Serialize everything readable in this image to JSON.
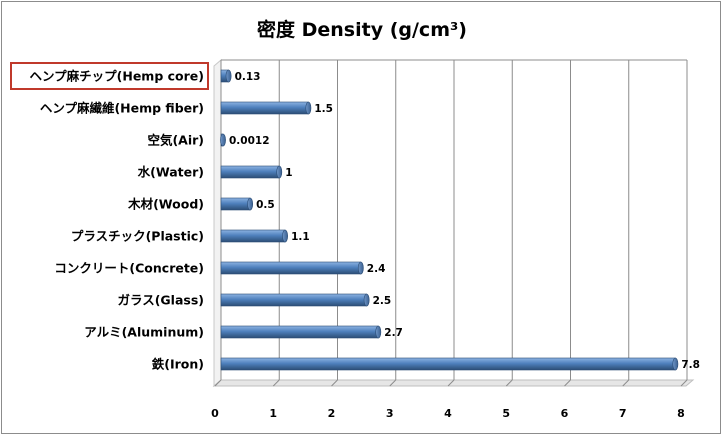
{
  "chart_data": {
    "type": "bar",
    "orientation": "horizontal",
    "title": "密度  Density (g/cm³)",
    "xlabel": "",
    "ylabel": "",
    "xlim": [
      0,
      8
    ],
    "x_ticks": [
      "0",
      "1",
      "2",
      "3",
      "4",
      "5",
      "6",
      "7",
      "8"
    ],
    "grid": "vertical",
    "legend": "none",
    "bar_color": "#4f81bd",
    "highlight_color": "#c0392b",
    "highlight_category": "ヘンプ麻チップ(Hemp core)",
    "categories": [
      "ヘンプ麻チップ(Hemp core)",
      "ヘンプ麻繊維(Hemp fiber)",
      "空気(Air)",
      "水(Water)",
      "木材(Wood)",
      "プラスチック(Plastic)",
      "コンクリート(Concrete)",
      "ガラス(Glass)",
      "アルミ(Aluminum)",
      "鉄(Iron)"
    ],
    "values": [
      0.13,
      1.5,
      0.0012,
      1,
      0.5,
      1.1,
      2.4,
      2.5,
      2.7,
      7.8
    ],
    "value_labels": [
      "0.13",
      "1.5",
      "0.0012",
      "1",
      "0.5",
      "1.1",
      "2.4",
      "2.5",
      "2.7",
      "7.8"
    ]
  }
}
